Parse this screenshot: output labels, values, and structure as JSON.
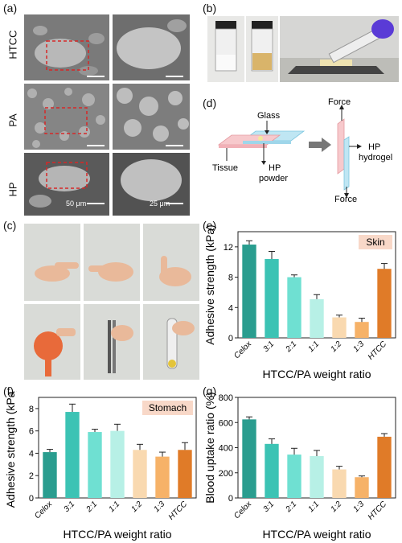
{
  "panels": {
    "a": {
      "label": "(a)",
      "rows": [
        "HTCC",
        "PA",
        "HP"
      ],
      "scale_left": "50 μm",
      "scale_right": "25 μm"
    },
    "b": {
      "label": "(b)"
    },
    "c": {
      "label": "(c)"
    },
    "d": {
      "label": "(d)",
      "texts": {
        "glass": "Glass",
        "force_top": "Force",
        "tissue": "Tissue",
        "hp_powder": "HP\npowder",
        "hp_hydrogel": "HP\nhydrogel",
        "force_bottom": "Force"
      }
    },
    "e": {
      "label": "(e)"
    },
    "f": {
      "label": "(f)"
    },
    "g": {
      "label": "(g)"
    }
  },
  "colors": {
    "bars": [
      "#2a9d8f",
      "#3cc3b4",
      "#6fe0d2",
      "#b7f0e6",
      "#f9d9b0",
      "#f6b268",
      "#e07b28"
    ],
    "tag_bg": "#f8d8c8",
    "dashed_box": "#d62828"
  },
  "chart_data": [
    {
      "type": "bar",
      "panel": "e",
      "categories": [
        "Celox",
        "3:1",
        "2:1",
        "1:1",
        "1:2",
        "1:3",
        "HTCC"
      ],
      "values": [
        12.3,
        10.4,
        8.0,
        5.1,
        2.7,
        2.1,
        9.1
      ],
      "errors": [
        0.5,
        1.0,
        0.3,
        0.6,
        0.3,
        0.5,
        0.7
      ],
      "tag": "Skin",
      "xlabel": "HTCC/PA weight ratio",
      "ylabel": "Adhesive strength (kPa)",
      "ylim": [
        0,
        14
      ],
      "yticks": [
        "0",
        "4",
        "8",
        "12"
      ]
    },
    {
      "type": "bar",
      "panel": "f",
      "categories": [
        "Celox",
        "3:1",
        "2:1",
        "1:1",
        "1:2",
        "1:3",
        "HTCC"
      ],
      "values": [
        4.1,
        7.7,
        5.9,
        6.0,
        4.3,
        3.7,
        4.3
      ],
      "errors": [
        0.25,
        0.7,
        0.25,
        0.6,
        0.5,
        0.4,
        0.65
      ],
      "tag": "Stomach",
      "xlabel": "HTCC/PA weight ratio",
      "ylabel": "Adhesive strength (kPa)",
      "ylim": [
        0,
        9
      ],
      "yticks": [
        "0",
        "2",
        "4",
        "6",
        "8"
      ]
    },
    {
      "type": "bar",
      "panel": "g",
      "categories": [
        "Celox",
        "3:1",
        "2:1",
        "1:1",
        "1:2",
        "1:3",
        "HTCC"
      ],
      "values": [
        625,
        430,
        345,
        333,
        227,
        165,
        487
      ],
      "errors": [
        20,
        40,
        50,
        45,
        25,
        10,
        25
      ],
      "xlabel": "HTCC/PA weight ratio",
      "ylabel": "Blood uptake ratio (%)",
      "ylim": [
        0,
        800
      ],
      "yticks": [
        "0",
        "200",
        "400",
        "600",
        "800"
      ]
    }
  ]
}
